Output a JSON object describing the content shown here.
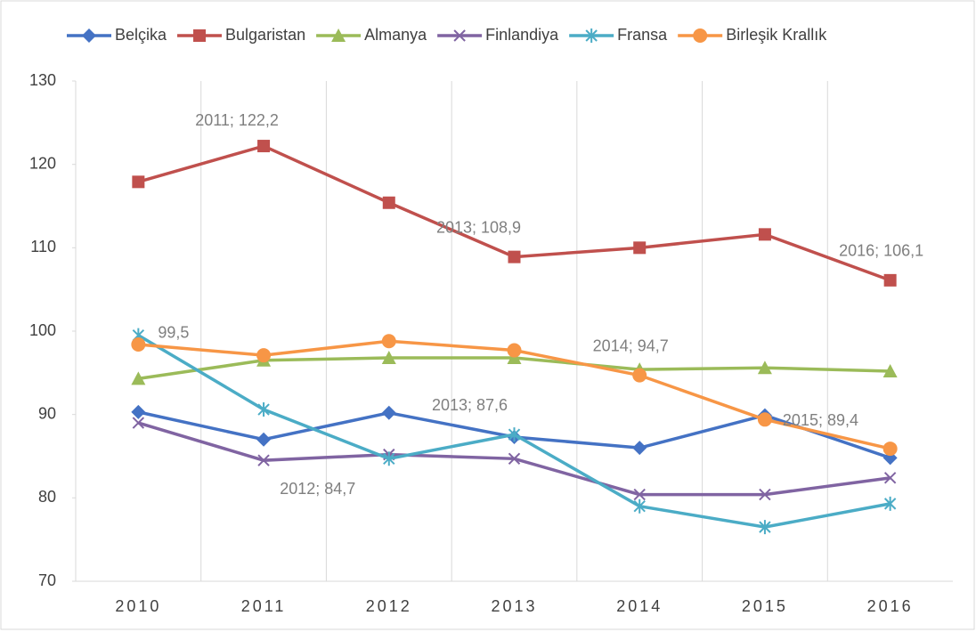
{
  "chart_data": {
    "type": "line",
    "categories": [
      "2010",
      "2011",
      "2012",
      "2013",
      "2014",
      "2015",
      "2016"
    ],
    "ylim": [
      70,
      130
    ],
    "yticks": [
      70,
      80,
      90,
      100,
      110,
      120,
      130
    ],
    "grid": "vertical",
    "legend": "top",
    "series": [
      {
        "name": "Belçika",
        "color": "#4472c4",
        "marker": "diamond",
        "values": [
          90.3,
          87.0,
          90.2,
          87.3,
          86.0,
          89.9,
          84.8
        ]
      },
      {
        "name": "Bulgaristan",
        "color": "#c0504d",
        "marker": "square",
        "values": [
          117.9,
          122.2,
          115.4,
          108.9,
          110.0,
          111.6,
          106.1
        ],
        "value_labels": [
          null,
          "2011; 122,2",
          null,
          "2013; 108,9",
          null,
          null,
          "2016; 106,1"
        ]
      },
      {
        "name": "Almanya",
        "color": "#9bbb59",
        "marker": "triangle",
        "values": [
          94.3,
          96.5,
          96.8,
          96.8,
          95.4,
          95.6,
          95.2
        ]
      },
      {
        "name": "Finlandiya",
        "color": "#8064a2",
        "marker": "x",
        "values": [
          89.0,
          84.5,
          85.2,
          84.7,
          80.4,
          80.4,
          82.4
        ]
      },
      {
        "name": "Fransa",
        "color": "#4bacc6",
        "marker": "star",
        "values": [
          99.5,
          90.6,
          84.7,
          87.6,
          79.0,
          76.5,
          79.3
        ],
        "value_labels": [
          "99,5",
          null,
          "2012; 84,7",
          "2013; 87,6",
          null,
          null,
          null
        ]
      },
      {
        "name": "Birleşik Krallık",
        "color": "#f79646",
        "marker": "circle",
        "values": [
          98.4,
          97.1,
          98.8,
          97.7,
          94.7,
          89.4,
          85.9
        ],
        "value_labels": [
          null,
          null,
          null,
          null,
          "2014; 94,7",
          "2015; 89,4",
          null
        ]
      }
    ]
  }
}
